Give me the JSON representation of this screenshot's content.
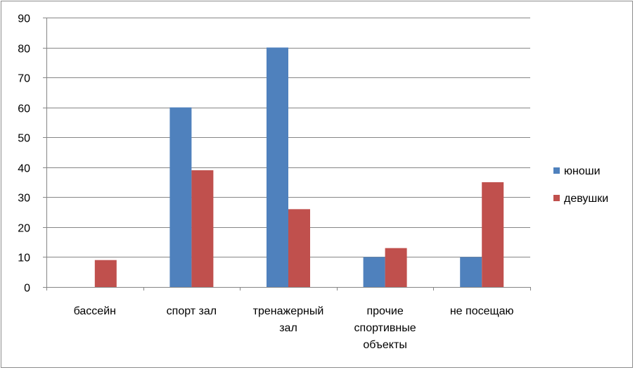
{
  "chart_data": {
    "type": "bar",
    "categories": [
      [
        "бассейн"
      ],
      [
        "спорт зал"
      ],
      [
        "тренажерный",
        "зал"
      ],
      [
        "прочие",
        "спортивные",
        "объекты"
      ],
      [
        "не посещаю"
      ]
    ],
    "series": [
      {
        "name": "юноши",
        "color": "#4f81bd",
        "values": [
          0,
          60,
          80,
          10,
          10
        ]
      },
      {
        "name": "девушки",
        "color": "#c0504d",
        "values": [
          9,
          39,
          26,
          13,
          35
        ]
      }
    ],
    "ylim": [
      0,
      90
    ],
    "yticks": [
      0,
      10,
      20,
      30,
      40,
      50,
      60,
      70,
      80,
      90
    ],
    "grid": true,
    "legend_position": "right"
  }
}
